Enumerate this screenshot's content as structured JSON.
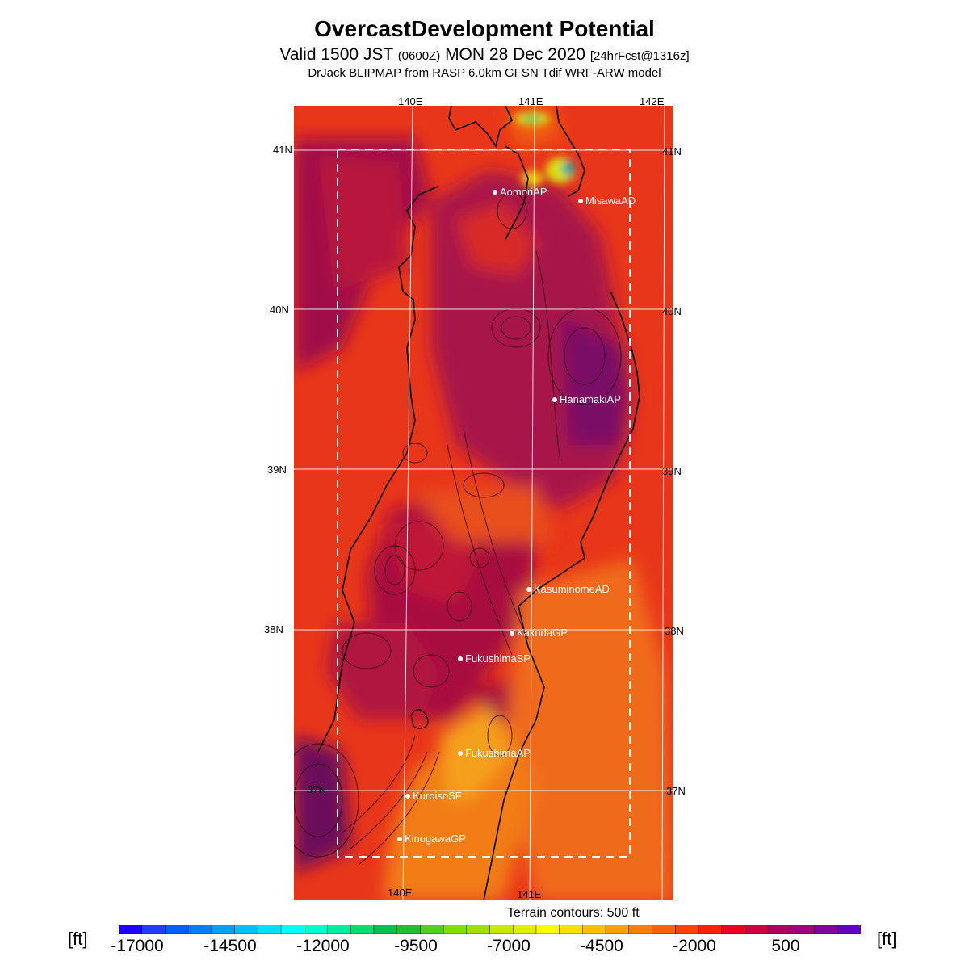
{
  "header": {
    "title": "OvercastDevelopment Potential",
    "valid_prefix": "Valid 1500 JST",
    "valid_utc": "(0600Z)",
    "valid_date": "MON 28 Dec 2020",
    "forecast": "[24hrFcst@1316z]",
    "model": "DrJack BLIPMAP from RASP 6.0km GFSN Tdif WRF-ARW model"
  },
  "map_labels": {
    "lon_top": [
      "140E",
      "141E",
      "142E"
    ],
    "lon_bottom": [
      "140E",
      "141E"
    ],
    "lat_left": [
      "41N",
      "40N",
      "39N",
      "38N",
      "37N"
    ],
    "lat_right": [
      "41N",
      "40N",
      "39N",
      "38N",
      "37N"
    ]
  },
  "sites": [
    {
      "name": "AomoriAP",
      "lon": 140.69,
      "lat": 40.73
    },
    {
      "name": "MisawaAD",
      "lon": 141.37,
      "lat": 40.67
    },
    {
      "name": "HanamakiAP",
      "lon": 141.13,
      "lat": 39.43
    },
    {
      "name": "KasuminomeAD",
      "lon": 140.98,
      "lat": 38.24
    },
    {
      "name": "KakudaGP",
      "lon": 140.83,
      "lat": 37.98
    },
    {
      "name": "FukushimaSP",
      "lon": 140.4,
      "lat": 37.82
    },
    {
      "name": "FukushimaAP",
      "lon": 140.4,
      "lat": 37.24
    },
    {
      "name": "KuroisoSF",
      "lon": 139.97,
      "lat": 36.97
    },
    {
      "name": "KinugawaGP",
      "lon": 139.89,
      "lat": 36.7
    }
  ],
  "terrain_note": "Terrain contours: 500 ft",
  "colorbar": {
    "unit": "[ft]",
    "ticks": [
      "-17000",
      "-14500",
      "-12000",
      "-9500",
      "-7000",
      "-4500",
      "-2000",
      "500"
    ],
    "colors": [
      "#1f00ff",
      "#1f3cff",
      "#0060ff",
      "#0080ff",
      "#00a0ff",
      "#00c0ff",
      "#00e0ff",
      "#00ffff",
      "#00ffd0",
      "#00f0a0",
      "#00e070",
      "#00c050",
      "#20c030",
      "#50d020",
      "#80e000",
      "#a0e000",
      "#c8e800",
      "#e0f000",
      "#ffff00",
      "#ffe000",
      "#ffc000",
      "#ffa000",
      "#ff8000",
      "#ff6000",
      "#ff4000",
      "#ff2000",
      "#f00020",
      "#d00040",
      "#b00060",
      "#a00080",
      "#8000a0",
      "#6000c0"
    ]
  }
}
